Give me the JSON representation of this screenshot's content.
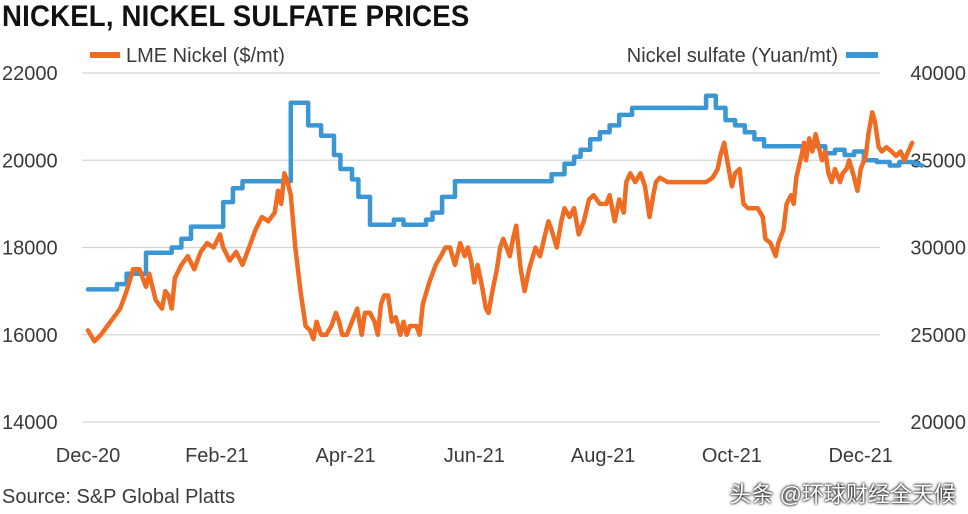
{
  "chart_data": {
    "type": "line",
    "title": "NICKEL, NICKEL SULFATE PRICES",
    "source": "Source: S&P Global Platts",
    "x_tick_labels": [
      "Dec-20",
      "Feb-21",
      "Apr-21",
      "Jun-21",
      "Aug-21",
      "Oct-21",
      "Dec-21"
    ],
    "x_range_months": [
      0,
      12.3
    ],
    "y_left": {
      "ticks": [
        "22000",
        "20000",
        "18000",
        "16000",
        "14000"
      ],
      "range": [
        14000,
        22000
      ]
    },
    "y_right": {
      "ticks": [
        "40000",
        "35000",
        "30000",
        "25000",
        "20000"
      ],
      "range": [
        20000,
        40000
      ]
    },
    "grid": "horizontal",
    "series": [
      {
        "name": "LME Nickel ($/mt)",
        "axis": "left",
        "color": "#ef6c22",
        "points": [
          [
            0.0,
            16100
          ],
          [
            0.1,
            15850
          ],
          [
            0.2,
            16000
          ],
          [
            0.3,
            16200
          ],
          [
            0.4,
            16400
          ],
          [
            0.5,
            16600
          ],
          [
            0.6,
            17000
          ],
          [
            0.7,
            17500
          ],
          [
            0.8,
            17500
          ],
          [
            0.85,
            17300
          ],
          [
            0.9,
            17100
          ],
          [
            0.95,
            17400
          ],
          [
            1.05,
            16800
          ],
          [
            1.15,
            16600
          ],
          [
            1.2,
            17000
          ],
          [
            1.25,
            16900
          ],
          [
            1.3,
            16600
          ],
          [
            1.35,
            17300
          ],
          [
            1.45,
            17600
          ],
          [
            1.55,
            17800
          ],
          [
            1.65,
            17500
          ],
          [
            1.75,
            17900
          ],
          [
            1.85,
            18100
          ],
          [
            1.95,
            18000
          ],
          [
            2.05,
            18300
          ],
          [
            2.1,
            18000
          ],
          [
            2.2,
            17700
          ],
          [
            2.3,
            17900
          ],
          [
            2.4,
            17600
          ],
          [
            2.5,
            18000
          ],
          [
            2.6,
            18400
          ],
          [
            2.7,
            18700
          ],
          [
            2.8,
            18600
          ],
          [
            2.9,
            18800
          ],
          [
            2.95,
            19300
          ],
          [
            3.0,
            19000
          ],
          [
            3.05,
            19700
          ],
          [
            3.1,
            19500
          ],
          [
            3.15,
            19200
          ],
          [
            3.22,
            18000
          ],
          [
            3.3,
            17000
          ],
          [
            3.38,
            16200
          ],
          [
            3.45,
            16100
          ],
          [
            3.5,
            15900
          ],
          [
            3.55,
            16300
          ],
          [
            3.62,
            16000
          ],
          [
            3.7,
            16000
          ],
          [
            3.78,
            16200
          ],
          [
            3.85,
            16500
          ],
          [
            3.9,
            16300
          ],
          [
            3.95,
            16000
          ],
          [
            4.02,
            16000
          ],
          [
            4.1,
            16300
          ],
          [
            4.18,
            16600
          ],
          [
            4.25,
            16000
          ],
          [
            4.3,
            16500
          ],
          [
            4.38,
            16500
          ],
          [
            4.45,
            16300
          ],
          [
            4.5,
            16000
          ],
          [
            4.55,
            16700
          ],
          [
            4.6,
            16900
          ],
          [
            4.66,
            16900
          ],
          [
            4.72,
            16300
          ],
          [
            4.78,
            16400
          ],
          [
            4.85,
            16000
          ],
          [
            4.9,
            16300
          ],
          [
            4.95,
            16000
          ],
          [
            5.0,
            16200
          ],
          [
            5.1,
            16200
          ],
          [
            5.15,
            16000
          ],
          [
            5.2,
            16700
          ],
          [
            5.3,
            17200
          ],
          [
            5.4,
            17600
          ],
          [
            5.48,
            17800
          ],
          [
            5.55,
            18000
          ],
          [
            5.62,
            18000
          ],
          [
            5.7,
            17600
          ],
          [
            5.78,
            18100
          ],
          [
            5.85,
            17800
          ],
          [
            5.9,
            18000
          ],
          [
            5.95,
            17700
          ],
          [
            6.0,
            17200
          ],
          [
            6.05,
            17600
          ],
          [
            6.12,
            17100
          ],
          [
            6.18,
            16600
          ],
          [
            6.22,
            16500
          ],
          [
            6.28,
            17000
          ],
          [
            6.35,
            17500
          ],
          [
            6.4,
            18000
          ],
          [
            6.45,
            18200
          ],
          [
            6.5,
            18000
          ],
          [
            6.55,
            17800
          ],
          [
            6.6,
            18200
          ],
          [
            6.65,
            18500
          ],
          [
            6.72,
            17500
          ],
          [
            6.78,
            17000
          ],
          [
            6.85,
            17500
          ],
          [
            6.95,
            18000
          ],
          [
            7.02,
            17800
          ],
          [
            7.1,
            18300
          ],
          [
            7.15,
            18600
          ],
          [
            7.2,
            18400
          ],
          [
            7.28,
            18000
          ],
          [
            7.35,
            18600
          ],
          [
            7.4,
            18900
          ],
          [
            7.48,
            18700
          ],
          [
            7.55,
            18900
          ],
          [
            7.62,
            18300
          ],
          [
            7.7,
            18600
          ],
          [
            7.78,
            19100
          ],
          [
            7.85,
            19200
          ],
          [
            7.95,
            19000
          ],
          [
            8.05,
            19000
          ],
          [
            8.1,
            19200
          ],
          [
            8.18,
            18600
          ],
          [
            8.25,
            19100
          ],
          [
            8.32,
            18800
          ],
          [
            8.36,
            19500
          ],
          [
            8.42,
            19700
          ],
          [
            8.5,
            19500
          ],
          [
            8.58,
            19700
          ],
          [
            8.65,
            19400
          ],
          [
            8.72,
            18700
          ],
          [
            8.78,
            19200
          ],
          [
            8.82,
            19500
          ],
          [
            8.88,
            19600
          ],
          [
            9.0,
            19500
          ],
          [
            9.2,
            19500
          ],
          [
            9.4,
            19500
          ],
          [
            9.6,
            19500
          ],
          [
            9.7,
            19600
          ],
          [
            9.78,
            19800
          ],
          [
            9.82,
            20100
          ],
          [
            9.88,
            20400
          ],
          [
            9.95,
            19800
          ],
          [
            10.0,
            19400
          ],
          [
            10.05,
            19700
          ],
          [
            10.12,
            19800
          ],
          [
            10.18,
            19000
          ],
          [
            10.25,
            18900
          ],
          [
            10.4,
            18900
          ],
          [
            10.48,
            18700
          ],
          [
            10.52,
            18200
          ],
          [
            10.6,
            18100
          ],
          [
            10.68,
            17800
          ],
          [
            10.72,
            18100
          ],
          [
            10.8,
            18400
          ],
          [
            10.85,
            19000
          ],
          [
            10.92,
            19200
          ],
          [
            10.96,
            19000
          ],
          [
            11.0,
            19600
          ],
          [
            11.08,
            20100
          ],
          [
            11.12,
            20400
          ],
          [
            11.15,
            20000
          ],
          [
            11.2,
            20500
          ],
          [
            11.25,
            20200
          ],
          [
            11.3,
            20600
          ],
          [
            11.35,
            20300
          ],
          [
            11.4,
            20000
          ],
          [
            11.45,
            20200
          ],
          [
            11.5,
            19700
          ],
          [
            11.55,
            19500
          ],
          [
            11.6,
            19800
          ],
          [
            11.68,
            19500
          ],
          [
            11.72,
            19700
          ],
          [
            11.78,
            19800
          ],
          [
            11.82,
            20000
          ],
          [
            11.88,
            19700
          ],
          [
            11.95,
            19300
          ],
          [
            12.0,
            19800
          ],
          [
            12.08,
            20100
          ],
          [
            12.12,
            20600
          ],
          [
            12.18,
            21100
          ],
          [
            12.22,
            20900
          ],
          [
            12.28,
            20300
          ],
          [
            12.33,
            20200
          ],
          [
            12.4,
            20300
          ],
          [
            12.48,
            20200
          ],
          [
            12.55,
            20100
          ],
          [
            12.62,
            20200
          ],
          [
            12.68,
            20000
          ],
          [
            12.74,
            20200
          ],
          [
            12.8,
            20400
          ]
        ]
      },
      {
        "name": "Nickel sulfate (Yuan/mt)",
        "axis": "right",
        "color": "#3b97d3",
        "points": [
          [
            0.0,
            27600
          ],
          [
            0.45,
            27600
          ],
          [
            0.45,
            27900
          ],
          [
            0.6,
            27900
          ],
          [
            0.6,
            28500
          ],
          [
            0.9,
            28500
          ],
          [
            0.9,
            29700
          ],
          [
            1.3,
            29700
          ],
          [
            1.3,
            30000
          ],
          [
            1.45,
            30000
          ],
          [
            1.45,
            30500
          ],
          [
            1.6,
            30500
          ],
          [
            1.6,
            31200
          ],
          [
            2.1,
            31200
          ],
          [
            2.1,
            32600
          ],
          [
            2.25,
            32600
          ],
          [
            2.25,
            33400
          ],
          [
            2.4,
            33400
          ],
          [
            2.4,
            33800
          ],
          [
            3.15,
            33800
          ],
          [
            3.15,
            38300
          ],
          [
            3.42,
            38300
          ],
          [
            3.42,
            37000
          ],
          [
            3.62,
            37000
          ],
          [
            3.62,
            36400
          ],
          [
            3.82,
            36400
          ],
          [
            3.82,
            35300
          ],
          [
            3.92,
            35300
          ],
          [
            3.92,
            34500
          ],
          [
            4.1,
            34500
          ],
          [
            4.1,
            33900
          ],
          [
            4.2,
            33900
          ],
          [
            4.2,
            32900
          ],
          [
            4.38,
            32900
          ],
          [
            4.38,
            31300
          ],
          [
            4.75,
            31300
          ],
          [
            4.75,
            31600
          ],
          [
            4.9,
            31600
          ],
          [
            4.9,
            31300
          ],
          [
            5.25,
            31300
          ],
          [
            5.25,
            31600
          ],
          [
            5.35,
            31600
          ],
          [
            5.35,
            32000
          ],
          [
            5.5,
            32000
          ],
          [
            5.5,
            32900
          ],
          [
            5.7,
            32900
          ],
          [
            5.7,
            33800
          ],
          [
            7.2,
            33800
          ],
          [
            7.2,
            34200
          ],
          [
            7.4,
            34200
          ],
          [
            7.4,
            34800
          ],
          [
            7.55,
            34800
          ],
          [
            7.55,
            35200
          ],
          [
            7.65,
            35200
          ],
          [
            7.65,
            35600
          ],
          [
            7.8,
            35600
          ],
          [
            7.8,
            36200
          ],
          [
            7.95,
            36200
          ],
          [
            7.95,
            36600
          ],
          [
            8.1,
            36600
          ],
          [
            8.1,
            37000
          ],
          [
            8.25,
            37000
          ],
          [
            8.25,
            37600
          ],
          [
            8.45,
            37600
          ],
          [
            8.45,
            38000
          ],
          [
            8.9,
            38000
          ],
          [
            9.0,
            38000
          ],
          [
            9.6,
            38000
          ],
          [
            9.6,
            38700
          ],
          [
            9.75,
            38700
          ],
          [
            9.75,
            38000
          ],
          [
            9.9,
            38000
          ],
          [
            9.9,
            37300
          ],
          [
            10.05,
            37300
          ],
          [
            10.05,
            37000
          ],
          [
            10.2,
            37000
          ],
          [
            10.2,
            36600
          ],
          [
            10.35,
            36600
          ],
          [
            10.35,
            36200
          ],
          [
            10.5,
            36200
          ],
          [
            10.5,
            35800
          ],
          [
            11.45,
            35800
          ],
          [
            11.45,
            35400
          ],
          [
            11.6,
            35400
          ],
          [
            11.6,
            35600
          ],
          [
            11.75,
            35600
          ],
          [
            11.75,
            35300
          ],
          [
            11.9,
            35300
          ],
          [
            11.9,
            35500
          ],
          [
            12.05,
            35500
          ],
          [
            12.05,
            35000
          ],
          [
            12.25,
            35000
          ],
          [
            12.25,
            34900
          ],
          [
            12.45,
            34900
          ],
          [
            12.45,
            34700
          ],
          [
            12.6,
            34700
          ],
          [
            12.6,
            34900
          ],
          [
            12.8,
            34900
          ],
          [
            12.95,
            34700
          ]
        ]
      }
    ]
  },
  "watermark": "头条 @环球财经全天候"
}
